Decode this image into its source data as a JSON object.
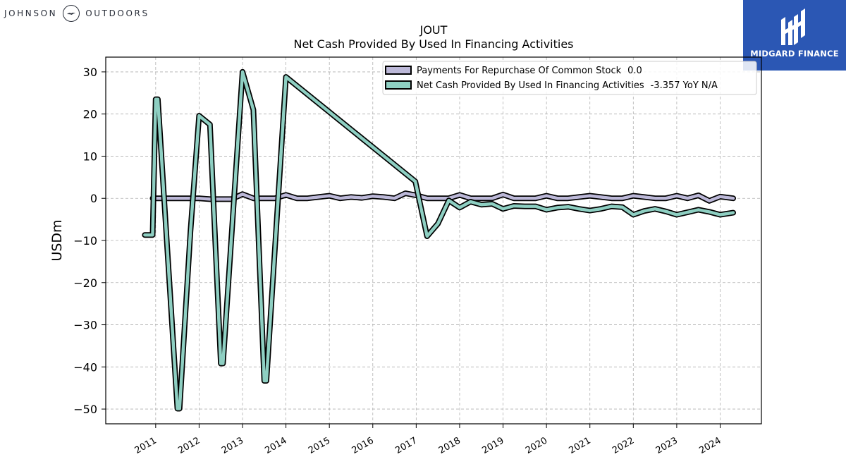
{
  "branding": {
    "left_word_1": "JOHNSON",
    "left_word_2": "OUTDOORS",
    "left_logo_icon": "bird-in-circle-icon",
    "right_label": "MIDGARD FINANCE",
    "right_logo_icon": "midgard-m-icon",
    "right_bg": "#2b57b4"
  },
  "chart_data": {
    "type": "line",
    "title": "JOUT",
    "subtitle": "Net Cash Provided By Used In Financing Activities",
    "ylabel": "USDm",
    "xlabel": "",
    "ylim": [
      -53.5,
      33.5
    ],
    "xlim": [
      2009.85,
      2024.95
    ],
    "yticks": [
      30,
      20,
      10,
      0,
      -10,
      -20,
      -30,
      -40,
      -50
    ],
    "ytick_labels": [
      "30",
      "20",
      "10",
      "0",
      "−10",
      "−20",
      "−30",
      "−40",
      "−50"
    ],
    "xticks": [
      2011,
      2012,
      2013,
      2014,
      2015,
      2016,
      2017,
      2018,
      2019,
      2020,
      2021,
      2022,
      2023,
      2024
    ],
    "xtick_labels": [
      "2011",
      "2012",
      "2013",
      "2014",
      "2015",
      "2016",
      "2017",
      "2018",
      "2019",
      "2020",
      "2021",
      "2022",
      "2023",
      "2024"
    ],
    "grid": true,
    "legend_position": "top-right",
    "series": [
      {
        "name": "Payments For Repurchase Of Common Stock",
        "legend_value": "0.0",
        "color": "#bcb8d8",
        "points": [
          [
            2010.93,
            0.0
          ],
          [
            2011.25,
            0.0
          ],
          [
            2011.5,
            0.0
          ],
          [
            2011.75,
            0.0
          ],
          [
            2012.0,
            0.0
          ],
          [
            2012.25,
            -0.2
          ],
          [
            2012.5,
            -0.2
          ],
          [
            2012.75,
            -0.2
          ],
          [
            2013.0,
            1.0
          ],
          [
            2013.25,
            0.0
          ],
          [
            2013.5,
            0.0
          ],
          [
            2013.75,
            0.0
          ],
          [
            2014.0,
            0.8
          ],
          [
            2014.25,
            0.0
          ],
          [
            2014.5,
            0.0
          ],
          [
            2014.75,
            0.3
          ],
          [
            2015.0,
            0.6
          ],
          [
            2015.25,
            0.0
          ],
          [
            2015.5,
            0.3
          ],
          [
            2015.75,
            0.1
          ],
          [
            2016.0,
            0.5
          ],
          [
            2016.25,
            0.3
          ],
          [
            2016.5,
            0.0
          ],
          [
            2016.75,
            1.2
          ],
          [
            2017.0,
            0.7
          ],
          [
            2017.25,
            0.0
          ],
          [
            2017.5,
            0.0
          ],
          [
            2017.75,
            0.0
          ],
          [
            2018.0,
            0.8
          ],
          [
            2018.25,
            0.0
          ],
          [
            2018.5,
            0.0
          ],
          [
            2018.75,
            0.0
          ],
          [
            2019.0,
            0.9
          ],
          [
            2019.25,
            0.0
          ],
          [
            2019.5,
            0.0
          ],
          [
            2019.75,
            0.0
          ],
          [
            2020.0,
            0.6
          ],
          [
            2020.25,
            0.0
          ],
          [
            2020.5,
            0.0
          ],
          [
            2020.75,
            0.3
          ],
          [
            2021.0,
            0.6
          ],
          [
            2021.25,
            0.3
          ],
          [
            2021.5,
            0.0
          ],
          [
            2021.75,
            0.0
          ],
          [
            2022.0,
            0.6
          ],
          [
            2022.25,
            0.3
          ],
          [
            2022.5,
            0.0
          ],
          [
            2022.75,
            0.0
          ],
          [
            2023.0,
            0.6
          ],
          [
            2023.25,
            0.0
          ],
          [
            2023.5,
            0.7
          ],
          [
            2023.75,
            -0.6
          ],
          [
            2024.0,
            0.4
          ],
          [
            2024.3,
            0.0
          ]
        ]
      },
      {
        "name": "Net Cash Provided By Used In Financing Activities",
        "legend_value": "-3.357 YoY N/A",
        "color": "#8ecfc2",
        "points": [
          [
            2010.75,
            -8.7
          ],
          [
            2010.93,
            -8.7
          ],
          [
            2011.0,
            23.5
          ],
          [
            2011.05,
            23.5
          ],
          [
            2011.5,
            -49.9
          ],
          [
            2011.55,
            -49.9
          ],
          [
            2011.8,
            -8.0
          ],
          [
            2012.0,
            19.6
          ],
          [
            2012.25,
            17.5
          ],
          [
            2012.5,
            -39.2
          ],
          [
            2012.55,
            -39.2
          ],
          [
            2013.0,
            30.0
          ],
          [
            2013.25,
            21.0
          ],
          [
            2013.5,
            -43.3
          ],
          [
            2013.55,
            -43.3
          ],
          [
            2014.0,
            28.8
          ],
          [
            2016.98,
            4.0
          ],
          [
            2017.25,
            -9.0
          ],
          [
            2017.5,
            -6.0
          ],
          [
            2017.75,
            -0.5
          ],
          [
            2018.0,
            -2.2
          ],
          [
            2018.25,
            -0.8
          ],
          [
            2018.5,
            -1.5
          ],
          [
            2018.75,
            -1.3
          ],
          [
            2019.0,
            -2.5
          ],
          [
            2019.25,
            -1.8
          ],
          [
            2019.5,
            -1.9
          ],
          [
            2019.75,
            -1.9
          ],
          [
            2020.0,
            -2.7
          ],
          [
            2020.25,
            -2.2
          ],
          [
            2020.5,
            -2.0
          ],
          [
            2020.75,
            -2.5
          ],
          [
            2021.0,
            -2.9
          ],
          [
            2021.25,
            -2.5
          ],
          [
            2021.5,
            -1.9
          ],
          [
            2021.75,
            -2.1
          ],
          [
            2022.0,
            -3.9
          ],
          [
            2022.25,
            -3.0
          ],
          [
            2022.5,
            -2.5
          ],
          [
            2022.75,
            -3.1
          ],
          [
            2023.0,
            -3.9
          ],
          [
            2023.25,
            -3.3
          ],
          [
            2023.5,
            -2.7
          ],
          [
            2023.75,
            -3.2
          ],
          [
            2024.0,
            -3.9
          ],
          [
            2024.3,
            -3.4
          ]
        ]
      }
    ]
  }
}
